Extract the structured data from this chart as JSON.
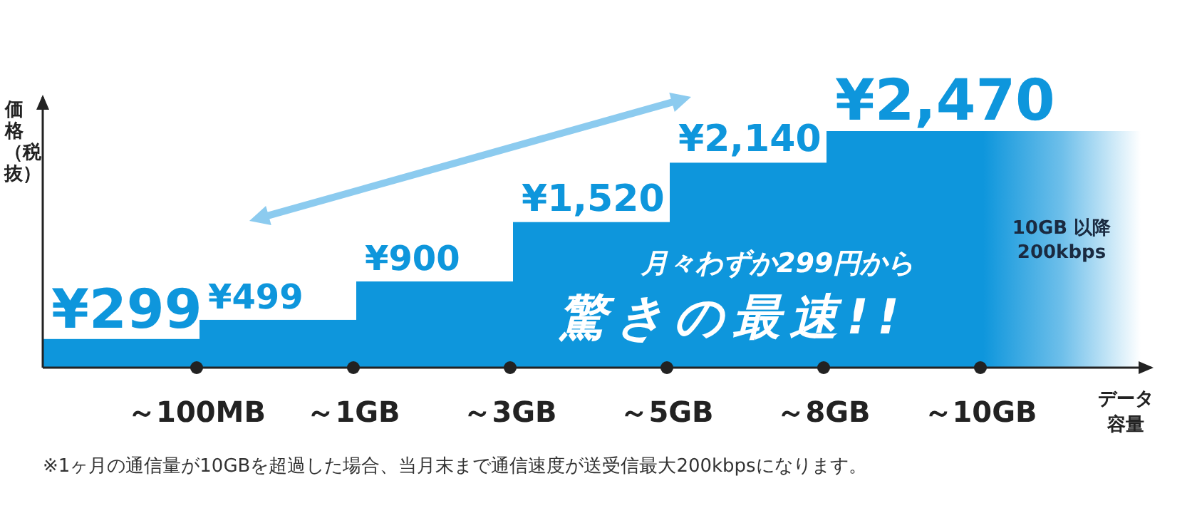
{
  "chart_data": {
    "type": "bar",
    "categories": [
      "～100MB",
      "～1GB",
      "～3GB",
      "～5GB",
      "～8GB",
      "～10GB",
      null
    ],
    "values": [
      299,
      499,
      900,
      1520,
      2140,
      2470,
      2470
    ],
    "color": "#0e96dc",
    "colors": [
      "#0e96dc",
      "#0e96dc",
      "#0e96dc",
      "#0e96dc",
      "#0e96dc",
      "#0e96dc",
      "#6ebfea"
    ],
    "value_labels": [
      "¥299",
      "¥499",
      "¥900",
      "¥1,520",
      "¥2,140",
      "¥2,470",
      null
    ],
    "xlabel": "データ容量",
    "ylabel": "価格（税抜）",
    "annotations": [
      "月々わずか299円から",
      "驚きの最速!!",
      "10GB 以降 200kbps",
      "※1ヶ月の通信量が10GBを超過した場合、当月末まで通信速度が送受信最大200kbpsになります。"
    ]
  }
}
